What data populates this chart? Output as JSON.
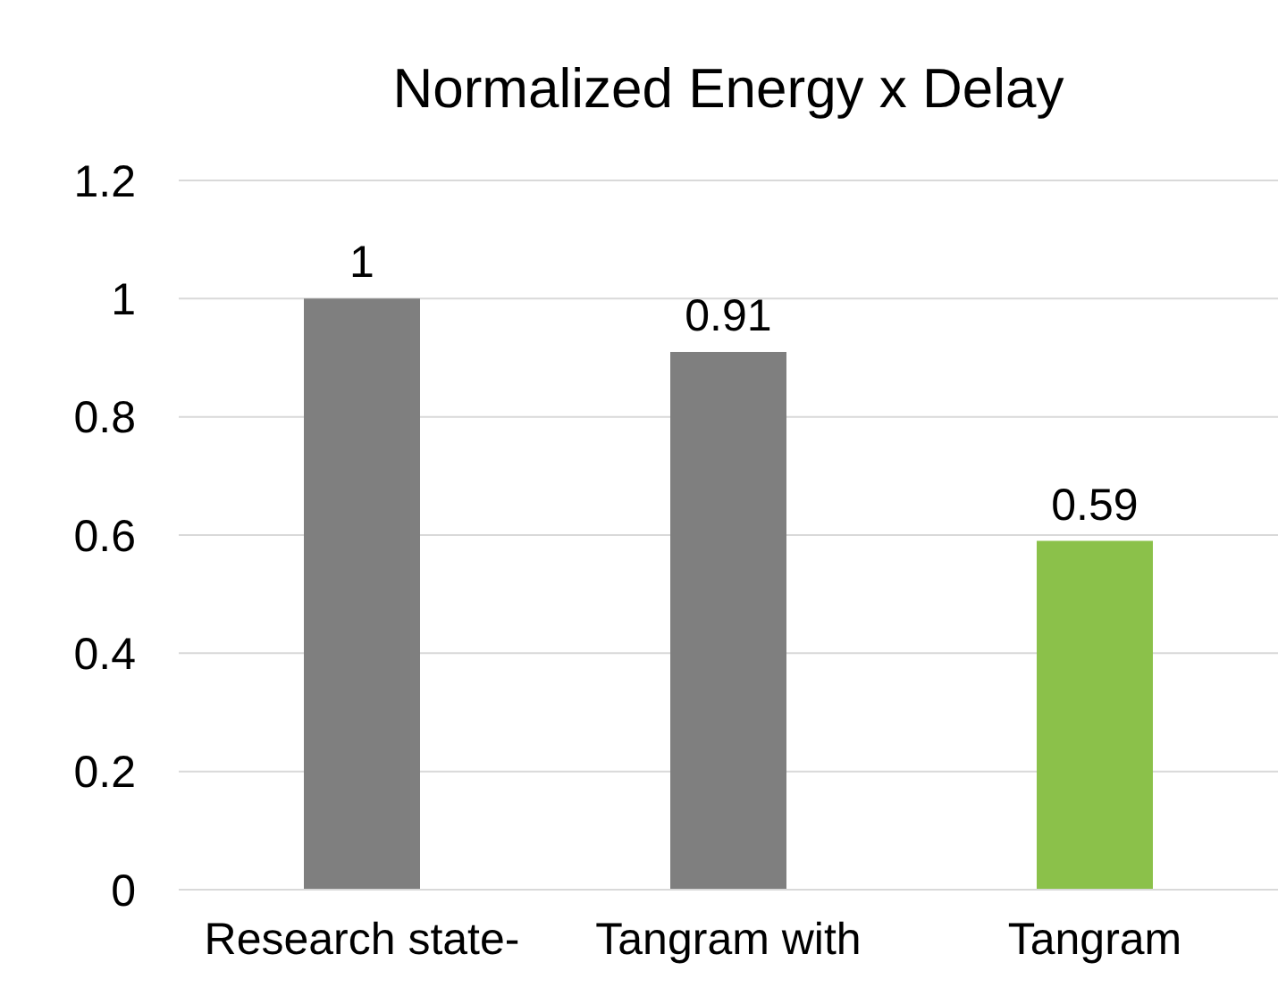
{
  "chart_data": {
    "type": "bar",
    "title": "Normalized Energy x Delay",
    "categories": [
      "Research state-",
      "Tangram with",
      "Tangram"
    ],
    "values": [
      1,
      0.91,
      0.59
    ],
    "colors": [
      "#7f7f7f",
      "#7f7f7f",
      "#8bc14a"
    ],
    "ylim": [
      0,
      1.2
    ],
    "yticks": [
      0,
      0.2,
      0.4,
      0.6,
      0.8,
      1,
      1.2
    ],
    "grid": "y",
    "data_labels": true
  }
}
